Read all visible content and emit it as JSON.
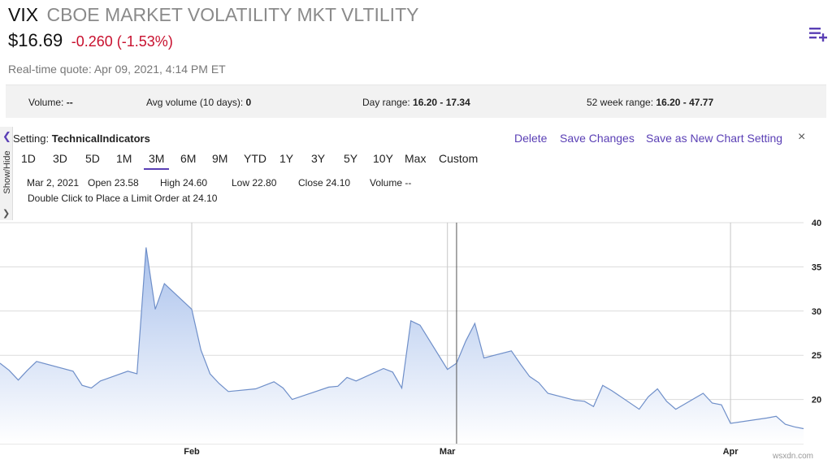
{
  "header": {
    "symbol": "VIX",
    "name": "CBOE MARKET VOLATILITY MKT VLTILITY",
    "price": "$16.69",
    "change": "-0.260 (-1.53%)",
    "quote_time": "Real-time quote: Apr 09, 2021, 4:14 PM ET",
    "add_icon": "playlist-add-icon"
  },
  "stats": {
    "volume_label": "Volume:",
    "volume_value": "--",
    "avg_volume_label": "Avg volume (10 days):",
    "avg_volume_value": "0",
    "day_range_label": "Day range:",
    "day_range_value": "16.20 - 17.34",
    "week52_label": "52 week range:",
    "week52_value": "16.20 - 47.77"
  },
  "panel": {
    "show_hide_label": "Show/Hide",
    "setting_label": "Setting:",
    "setting_value": "TechnicalIndicators",
    "delete_label": "Delete",
    "save_label": "Save Changes",
    "save_new_label": "Save as New Chart Setting",
    "close_label": "×"
  },
  "ranges": {
    "items": [
      "1D",
      "3D",
      "5D",
      "1M",
      "3M",
      "6M",
      "9M",
      "YTD",
      "1Y",
      "3Y",
      "5Y",
      "10Y",
      "Max",
      "Custom"
    ],
    "active": "3M"
  },
  "ohlc": {
    "date": "Mar 2, 2021",
    "open": "Open 23.58",
    "high": "High 24.60",
    "low": "Low 22.80",
    "close": "Close 24.10",
    "volume": "Volume --",
    "limit_note": "Double Click to Place a Limit Order at 24.10"
  },
  "colors": {
    "accent": "#5a3fb5",
    "negative": "#c8102e",
    "line": "#6f8fc9"
  },
  "chart_data": {
    "type": "area",
    "title": "",
    "xlabel": "",
    "ylabel": "",
    "ylim": [
      15,
      40
    ],
    "yticks": [
      20,
      25,
      30,
      35,
      40
    ],
    "x_tick_labels": [
      "Feb",
      "Mar",
      "Apr"
    ],
    "x_tick_dates": [
      "2021-02-01",
      "2021-03-01",
      "2021-04-01"
    ],
    "crosshair_date": "2021-03-02",
    "series": [
      {
        "name": "VIX",
        "dates": [
          "2021-01-11",
          "2021-01-12",
          "2021-01-13",
          "2021-01-14",
          "2021-01-15",
          "2021-01-19",
          "2021-01-20",
          "2021-01-21",
          "2021-01-22",
          "2021-01-25",
          "2021-01-26",
          "2021-01-27",
          "2021-01-28",
          "2021-01-29",
          "2021-02-01",
          "2021-02-02",
          "2021-02-03",
          "2021-02-04",
          "2021-02-05",
          "2021-02-08",
          "2021-02-09",
          "2021-02-10",
          "2021-02-11",
          "2021-02-12",
          "2021-02-16",
          "2021-02-17",
          "2021-02-18",
          "2021-02-19",
          "2021-02-22",
          "2021-02-23",
          "2021-02-24",
          "2021-02-25",
          "2021-02-26",
          "2021-03-01",
          "2021-03-02",
          "2021-03-03",
          "2021-03-04",
          "2021-03-05",
          "2021-03-08",
          "2021-03-09",
          "2021-03-10",
          "2021-03-11",
          "2021-03-12",
          "2021-03-15",
          "2021-03-16",
          "2021-03-17",
          "2021-03-18",
          "2021-03-19",
          "2021-03-22",
          "2021-03-23",
          "2021-03-24",
          "2021-03-25",
          "2021-03-26",
          "2021-03-29",
          "2021-03-30",
          "2021-03-31",
          "2021-04-01",
          "2021-04-05",
          "2021-04-06",
          "2021-04-07",
          "2021-04-08",
          "2021-04-09"
        ],
        "values": [
          24.1,
          23.3,
          22.2,
          23.3,
          24.3,
          23.2,
          21.6,
          21.3,
          22.1,
          23.2,
          22.9,
          37.2,
          30.2,
          33.1,
          30.2,
          25.6,
          22.9,
          21.8,
          20.9,
          21.2,
          21.6,
          22.0,
          21.3,
          20.0,
          21.4,
          21.5,
          22.5,
          22.1,
          23.5,
          23.1,
          21.3,
          28.9,
          28.4,
          23.4,
          24.1,
          26.6,
          28.6,
          24.7,
          25.5,
          24.0,
          22.6,
          21.9,
          20.7,
          19.9,
          19.8,
          19.2,
          21.6,
          21.0,
          18.9,
          20.3,
          21.2,
          19.8,
          18.9,
          20.7,
          19.6,
          19.4,
          17.3,
          17.9,
          18.1,
          17.2,
          16.9,
          16.7
        ]
      }
    ]
  }
}
